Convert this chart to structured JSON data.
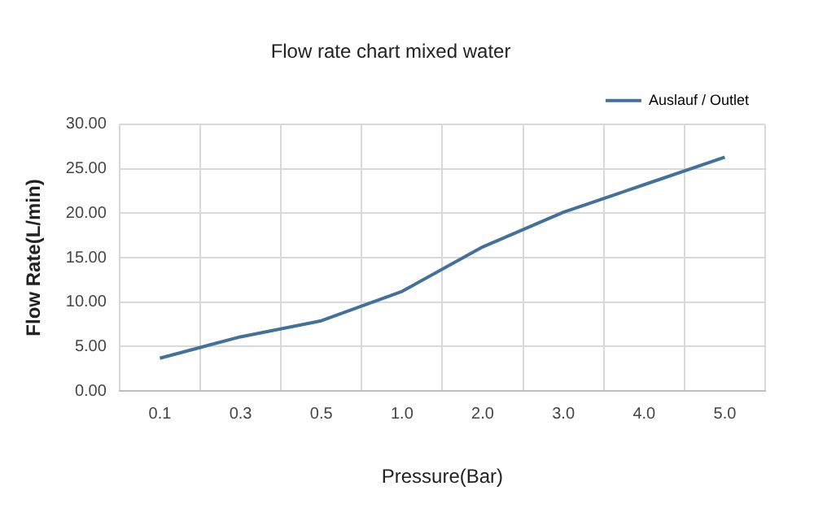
{
  "chart_data": {
    "type": "line",
    "title": "Flow rate chart mixed water",
    "xlabel": "Pressure(Bar)",
    "ylabel": "Flow Rate(L/min)",
    "categories": [
      "0.1",
      "0.3",
      "0.5",
      "1.0",
      "2.0",
      "3.0",
      "4.0",
      "5.0"
    ],
    "series": [
      {
        "name": "Auslauf / Outlet",
        "color": "#41719c",
        "values": [
          3.7,
          6.1,
          7.9,
          11.2,
          16.2,
          20.1,
          23.2,
          26.3
        ]
      }
    ],
    "ylim": [
      0,
      30
    ],
    "yticks": [
      {
        "value": 0,
        "label": "0.00"
      },
      {
        "value": 5,
        "label": "5.00"
      },
      {
        "value": 10,
        "label": "10.00"
      },
      {
        "value": 15,
        "label": "15.00"
      },
      {
        "value": 20,
        "label": "20.00"
      },
      {
        "value": 25,
        "label": "25.00"
      },
      {
        "value": 30,
        "label": "30.00"
      }
    ],
    "grid": true,
    "legend": "top right",
    "marker": "none",
    "line_style": "solid"
  }
}
